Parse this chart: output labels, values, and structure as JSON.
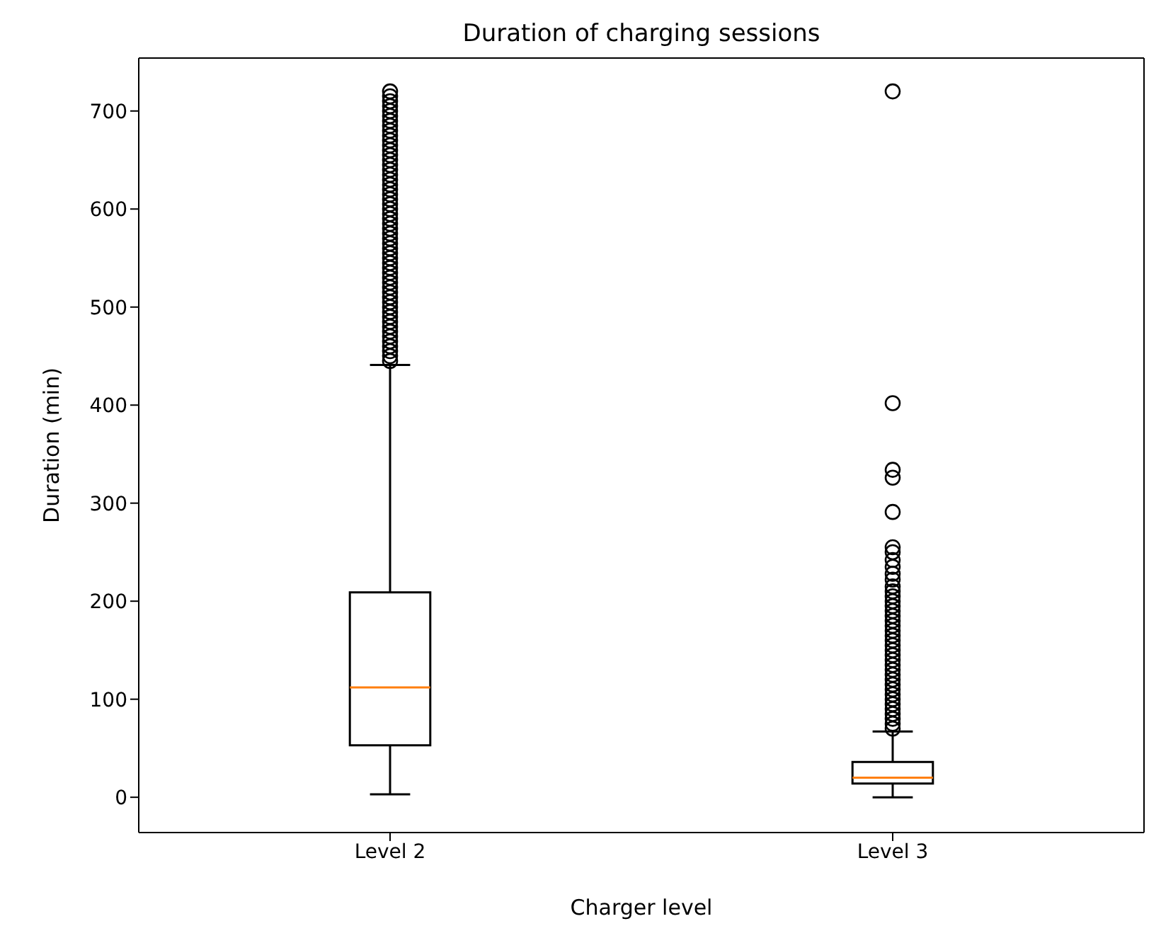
{
  "chart_data": {
    "type": "box",
    "title": "Duration of charging sessions",
    "xlabel": "Charger level",
    "ylabel": "Duration (min)",
    "categories": [
      "Level 2",
      "Level 3"
    ],
    "boxes": [
      {
        "low": 3,
        "q1": 53,
        "median": 112,
        "q3": 209,
        "high": 441,
        "outliers": [
          445,
          450,
          455,
          460,
          465,
          470,
          475,
          480,
          485,
          490,
          495,
          500,
          505,
          510,
          515,
          520,
          525,
          530,
          535,
          540,
          545,
          550,
          555,
          560,
          565,
          570,
          575,
          580,
          585,
          590,
          595,
          600,
          605,
          610,
          615,
          620,
          625,
          630,
          635,
          640,
          645,
          650,
          655,
          660,
          665,
          670,
          675,
          680,
          685,
          690,
          695,
          700,
          705,
          710,
          715,
          720
        ]
      },
      {
        "low": 0,
        "q1": 14,
        "median": 20,
        "q3": 36,
        "high": 67,
        "outliers": [
          70,
          75,
          80,
          85,
          90,
          95,
          100,
          105,
          110,
          115,
          120,
          125,
          130,
          135,
          140,
          145,
          150,
          155,
          160,
          165,
          170,
          175,
          180,
          185,
          190,
          195,
          200,
          205,
          210,
          215,
          222,
          228,
          235,
          242,
          250,
          255,
          291,
          326,
          334,
          402,
          720
        ]
      }
    ],
    "ylim": [
      -36,
      754
    ],
    "yticks": [
      0,
      100,
      200,
      300,
      400,
      500,
      600,
      700
    ],
    "marker": "circle"
  }
}
